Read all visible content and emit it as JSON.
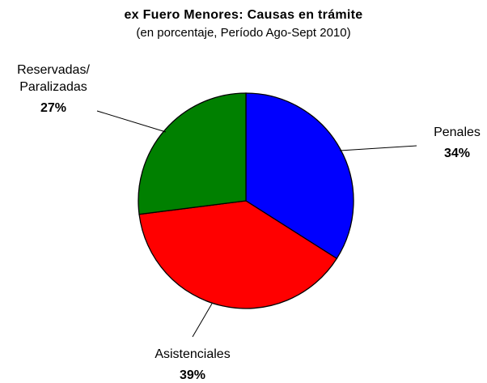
{
  "chart_data": {
    "type": "pie",
    "title": "ex Fuero Menores: Causas en trámite",
    "subtitle": "(en porcentaje, Período Ago-Sept 2010)",
    "slices": [
      {
        "label": "Penales",
        "value": 34,
        "value_label": "34%",
        "color": "#0000ff"
      },
      {
        "label": "Asistenciales",
        "value": 39,
        "value_label": "39%",
        "color": "#ff0000"
      },
      {
        "label": "Reservadas/ Paralizadas",
        "label_lines": [
          "Reservadas/",
          "Paralizadas"
        ],
        "value": 27,
        "value_label": "27%",
        "color": "#008000"
      }
    ]
  }
}
